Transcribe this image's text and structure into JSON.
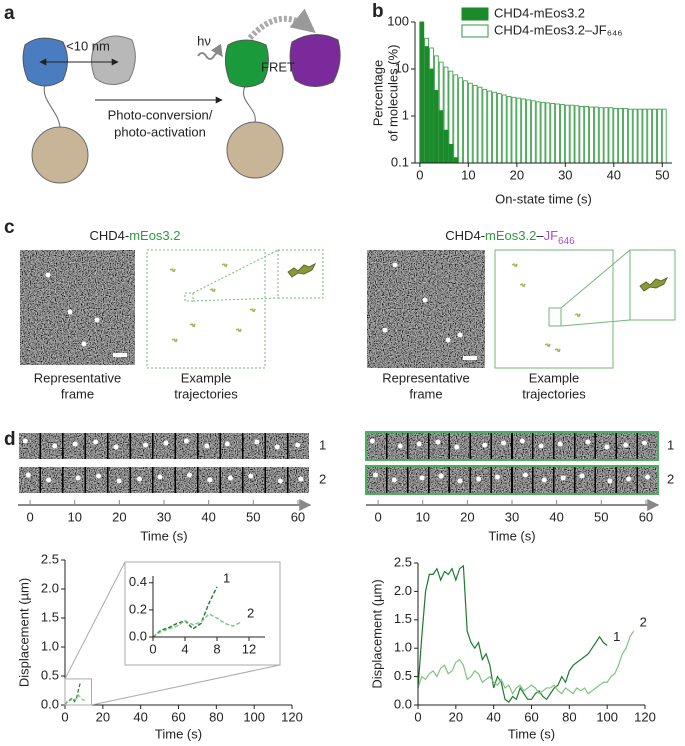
{
  "panel_labels": [
    "a",
    "b",
    "c",
    "d"
  ],
  "diagram": {
    "distance": "<10 nm",
    "light": "hν",
    "fret": "FRET",
    "arrow_label": [
      "Photo-conversion/",
      "photo-activation"
    ]
  },
  "imaging": [
    {
      "title": [
        {
          "text": "CHD4-",
          "color": "#222222"
        },
        {
          "text": "mEos3.2",
          "color": "#2e9a3e"
        }
      ],
      "frame_caption": [
        "Representative",
        "frame"
      ],
      "trajectory_caption": [
        "Example",
        "trajectories"
      ]
    },
    {
      "title": [
        {
          "text": "CHD4-",
          "color": "#222222"
        },
        {
          "text": "mEos3.2",
          "color": "#2e9a3e"
        },
        {
          "text": "–",
          "color": "#222222"
        },
        {
          "text": "JF",
          "color": "#b04ec8"
        },
        {
          "text": "646",
          "color": "#b04ec8",
          "sub": true
        }
      ],
      "frame_caption": [
        "Representative",
        "frame"
      ],
      "trajectory_caption": [
        "Example",
        "trajectories"
      ]
    }
  ],
  "filmstrips": [
    {
      "rows": [
        "1",
        "2"
      ],
      "xlim": [
        -2.7,
        62.7
      ],
      "xticks": [
        0,
        10,
        20,
        30,
        40,
        50,
        60
      ],
      "xlabel": "Time (s)"
    },
    {
      "rows": [
        "1",
        "2"
      ],
      "xlim": [
        -2.7,
        62.7
      ],
      "xticks": [
        0,
        10,
        20,
        30,
        40,
        50,
        60
      ],
      "xlabel": "Time (s)"
    }
  ],
  "chart_data": [
    {
      "type": "bar",
      "log_y": true,
      "xlabel": "On-state time (s)",
      "ylabel": [
        "Percentage",
        "of molecules (%)"
      ],
      "xlim": [
        -1,
        52
      ],
      "xticks": [
        0,
        10,
        20,
        30,
        40,
        50
      ],
      "ylim": [
        0.1,
        100
      ],
      "yticks": [
        0.1,
        1,
        10,
        100
      ],
      "x": [
        0,
        1,
        2,
        3,
        4,
        5,
        6,
        7,
        8,
        9,
        10,
        11,
        12,
        13,
        14,
        15,
        16,
        17,
        18,
        19,
        20,
        21,
        22,
        23,
        24,
        25,
        26,
        27,
        28,
        29,
        30,
        31,
        32,
        33,
        34,
        35,
        36,
        37,
        38,
        39,
        40,
        41,
        42,
        43,
        44,
        45,
        46,
        47,
        48,
        49,
        50
      ],
      "series": [
        {
          "name": "CHD4-mEos3.2",
          "color": "#1a8a2a",
          "filled": true,
          "values": [
            100,
            30,
            10,
            3.5,
            1.3,
            0.5,
            0.25,
            0.13,
            null,
            null,
            null,
            null,
            null,
            null,
            null,
            null,
            null,
            null,
            null,
            null,
            null,
            null,
            null,
            null,
            null,
            null,
            null,
            null,
            null,
            null,
            null,
            null,
            null,
            null,
            null,
            null,
            null,
            null,
            null,
            null,
            null,
            null,
            null,
            null,
            null,
            null,
            null,
            null,
            null,
            null,
            null
          ]
        },
        {
          "name": "CHD4-mEos3.2–JF₆₄₆",
          "color": "#2e9a3e",
          "filled": false,
          "values": [
            100,
            45,
            28,
            19,
            14,
            11,
            9,
            7.5,
            6.5,
            5.6,
            5,
            4.5,
            4.1,
            3.7,
            3.4,
            3.2,
            3,
            2.8,
            2.6,
            2.5,
            2.4,
            2.3,
            2.2,
            2.1,
            2,
            1.95,
            1.9,
            1.85,
            1.8,
            1.75,
            1.7,
            1.7,
            1.65,
            1.6,
            1.6,
            1.55,
            1.55,
            1.5,
            1.5,
            1.5,
            1.45,
            1.45,
            1.45,
            1.4,
            1.4,
            1.4,
            1.4,
            1.4,
            1.4,
            1.4,
            1.4
          ]
        }
      ]
    },
    {
      "type": "line",
      "xlabel": "Time (s)",
      "ylabel": "Displacement (µm)",
      "xlim": [
        0,
        120
      ],
      "xticks": [
        0,
        20,
        40,
        60,
        80,
        100,
        120
      ],
      "ylim": [
        0,
        2.5
      ],
      "yticks": [
        {
          "value": 0,
          "label": "0.0"
        },
        0.5,
        {
          "value": 1,
          "label": "1.0"
        },
        1.5,
        {
          "value": 2,
          "label": "2.0"
        },
        2.5
      ],
      "dashed": true,
      "inset": {
        "xlim": [
          0,
          14
        ],
        "ylim": [
          0,
          0.45
        ],
        "xticks": [
          0,
          4,
          8,
          12
        ],
        "yticks": [
          {
            "value": 0,
            "label": "0.0"
          },
          0.2,
          0.4
        ]
      },
      "series": [
        {
          "name": "1",
          "color": "#1e7a2e",
          "x": [
            0,
            1,
            2,
            3,
            4,
            5,
            6,
            7,
            8
          ],
          "values": [
            0,
            0.05,
            0.07,
            0.1,
            0.12,
            0.06,
            0.1,
            0.25,
            0.37
          ]
        },
        {
          "name": "2",
          "color": "#7fc47f",
          "x": [
            0,
            1,
            2,
            3,
            4,
            5,
            6,
            7,
            8,
            9,
            10,
            11
          ],
          "values": [
            0,
            0.04,
            0.06,
            0.08,
            0.12,
            0.09,
            0.11,
            0.17,
            0.14,
            0.1,
            0.08,
            0.11
          ]
        }
      ]
    },
    {
      "type": "line",
      "xlabel": "Time (s)",
      "ylabel": "Displacement (µm)",
      "xlim": [
        0,
        120
      ],
      "xticks": [
        0,
        20,
        40,
        60,
        80,
        100,
        120
      ],
      "ylim": [
        0,
        2.5
      ],
      "yticks": [
        {
          "value": 0,
          "label": "0.0"
        },
        0.5,
        {
          "value": 1,
          "label": "1.0"
        },
        1.5,
        {
          "value": 2,
          "label": "2.0"
        },
        2.5
      ],
      "dashed": false,
      "series": [
        {
          "name": "1",
          "color": "#1e7a2e",
          "x": [
            0,
            2,
            4,
            6,
            8,
            10,
            12,
            14,
            16,
            18,
            20,
            22,
            24,
            26,
            28,
            30,
            32,
            34,
            36,
            38,
            40,
            42,
            44,
            46,
            48,
            50,
            52,
            54,
            56,
            58,
            60,
            62,
            64,
            66,
            68,
            70,
            72,
            74,
            76,
            78,
            80,
            82,
            84,
            86,
            88,
            90,
            92,
            94,
            96,
            98,
            100
          ],
          "values": [
            0.3,
            1.2,
            2.0,
            2.3,
            2.3,
            2.4,
            2.2,
            2.35,
            2.3,
            2.4,
            2.2,
            2.4,
            2.45,
            1.3,
            1.1,
            1.0,
            1.1,
            0.8,
            0.9,
            0.7,
            0.3,
            0.5,
            0.4,
            0.1,
            0.05,
            0.15,
            0.1,
            0.3,
            0.2,
            0.1,
            0.1,
            0.2,
            0.25,
            0.15,
            0.1,
            0.2,
            0.3,
            0.35,
            0.5,
            0.4,
            0.6,
            0.7,
            0.75,
            0.8,
            0.85,
            0.9,
            1.0,
            1.1,
            1.2,
            1.1,
            1.05
          ]
        },
        {
          "name": "2",
          "color": "#7fc47f",
          "x": [
            0,
            2,
            4,
            6,
            8,
            10,
            12,
            14,
            16,
            18,
            20,
            22,
            24,
            26,
            28,
            30,
            32,
            34,
            36,
            38,
            40,
            42,
            44,
            46,
            48,
            50,
            52,
            54,
            56,
            58,
            60,
            62,
            64,
            66,
            68,
            70,
            72,
            74,
            76,
            78,
            80,
            82,
            84,
            86,
            88,
            90,
            92,
            94,
            96,
            98,
            100,
            102,
            104,
            106,
            108,
            110,
            112,
            114
          ],
          "values": [
            0.3,
            0.5,
            0.45,
            0.55,
            0.6,
            0.5,
            0.65,
            0.7,
            0.55,
            0.6,
            0.75,
            0.8,
            0.7,
            0.45,
            0.5,
            0.6,
            0.55,
            0.4,
            0.45,
            0.5,
            0.4,
            0.35,
            0.45,
            0.3,
            0.35,
            0.2,
            0.3,
            0.35,
            0.25,
            0.3,
            0.35,
            0.3,
            0.2,
            0.25,
            0.3,
            0.3,
            0.35,
            0.25,
            0.2,
            0.3,
            0.25,
            0.2,
            0.3,
            0.25,
            0.3,
            0.2,
            0.25,
            0.3,
            0.35,
            0.4,
            0.4,
            0.5,
            0.55,
            0.7,
            0.9,
            1.0,
            1.2,
            1.3
          ]
        }
      ]
    }
  ]
}
